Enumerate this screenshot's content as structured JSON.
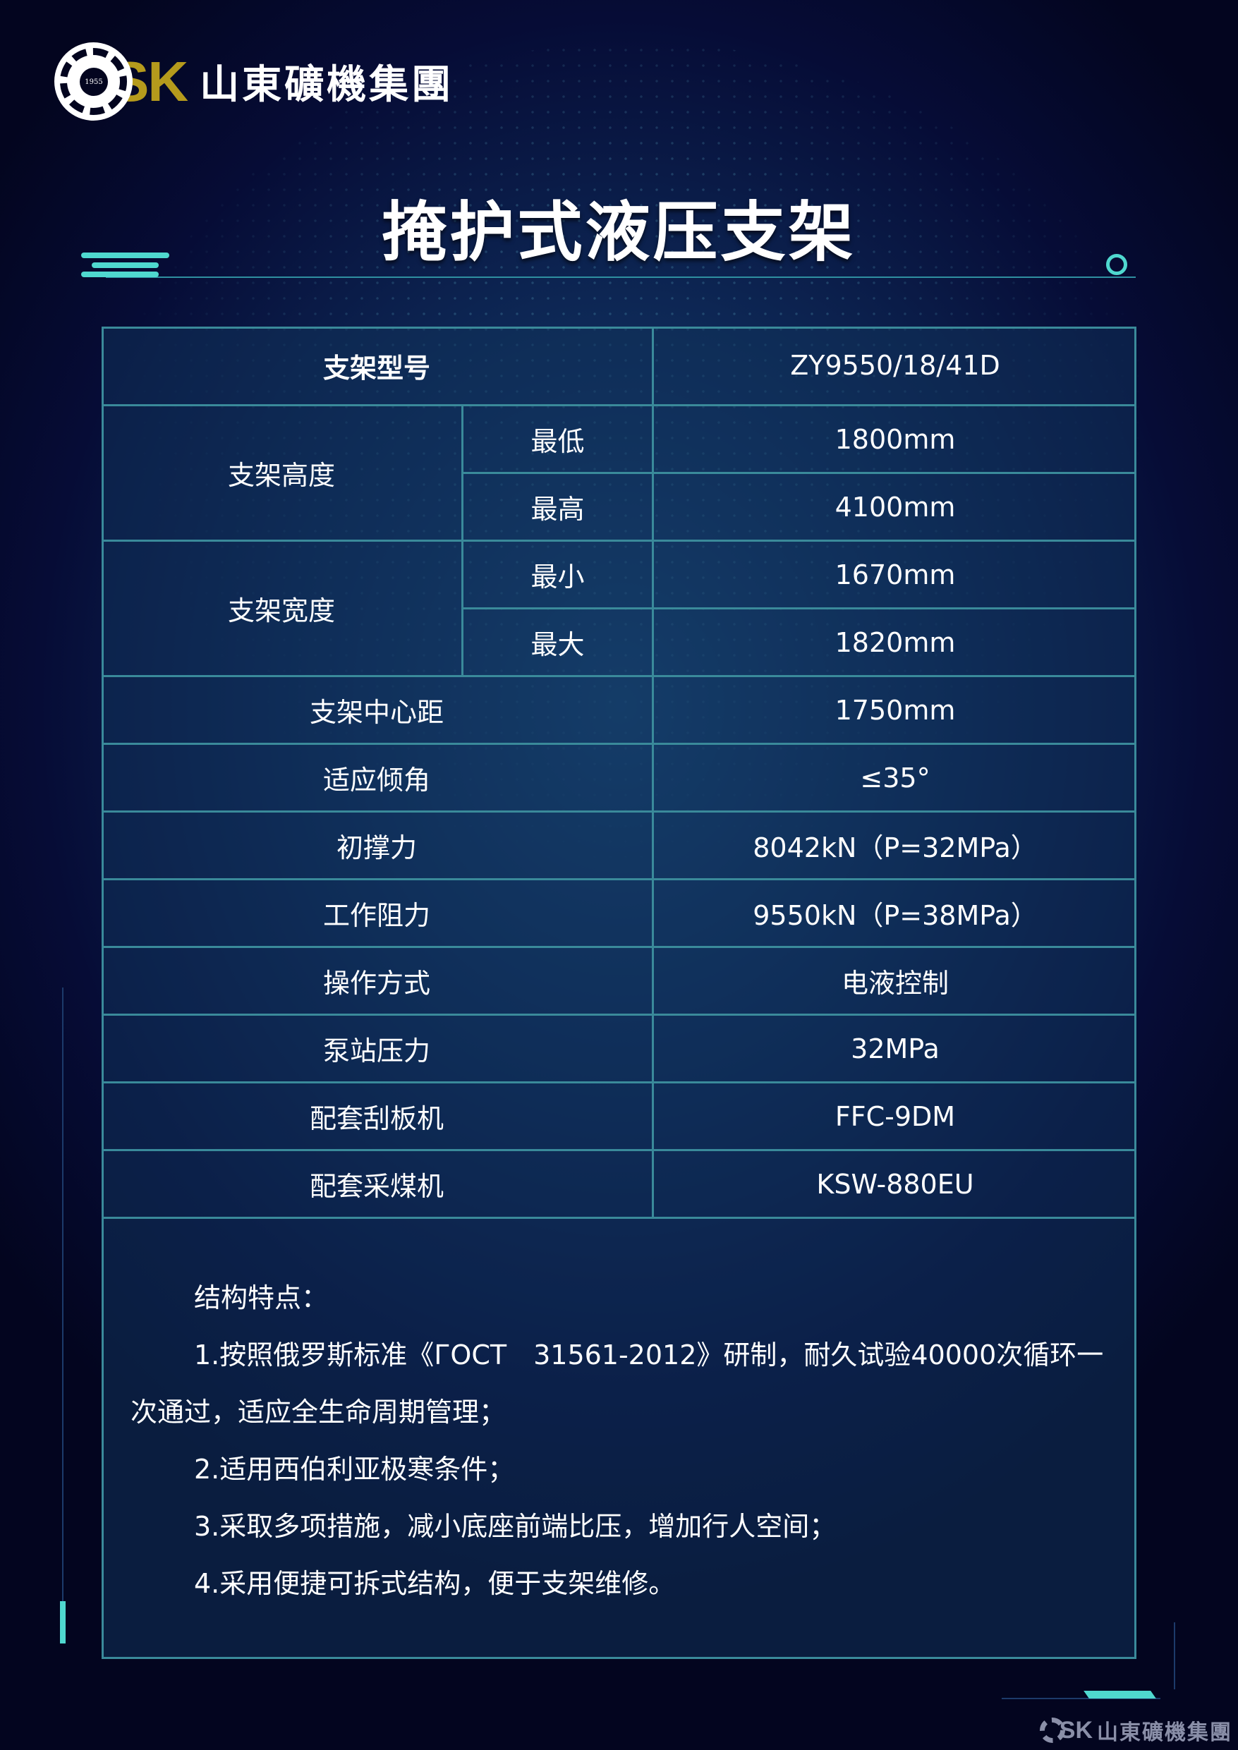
{
  "logo": {
    "year": "1955",
    "letters": "SK",
    "company": "山東礦機集團"
  },
  "title": "掩护式液压支架",
  "table": {
    "header": {
      "label": "支架型号",
      "value": "ZY9550/18/41D"
    },
    "height": {
      "label": "支架高度",
      "rows": [
        {
          "sub": "最低",
          "value": "1800mm"
        },
        {
          "sub": "最高",
          "value": "4100mm"
        }
      ]
    },
    "width": {
      "label": "支架宽度",
      "rows": [
        {
          "sub": "最小",
          "value": "1670mm"
        },
        {
          "sub": "最大",
          "value": "1820mm"
        }
      ]
    },
    "rows": [
      {
        "label": "支架中心距",
        "value": "1750mm"
      },
      {
        "label": "适应倾角",
        "value": "≤35°"
      },
      {
        "label": "初撑力",
        "value": "8042kN（P=32MPa）"
      },
      {
        "label": "工作阻力",
        "value": "9550kN（P=38MPa）"
      },
      {
        "label": "操作方式",
        "value": "电液控制"
      },
      {
        "label": "泵站压力",
        "value": "32MPa"
      },
      {
        "label": "配套刮板机",
        "value": "FFC-9DM"
      },
      {
        "label": "配套采煤机",
        "value": "KSW-880EU"
      }
    ]
  },
  "notes": {
    "heading": "结构特点：",
    "items": [
      "1.按照俄罗斯标准《ГОСТ　31561-2012》研制，耐久试验40000次循环一次通过，适应全生命周期管理；",
      "2.适用西伯利亚极寒条件；",
      "3.采取多项措施，减小底座前端比压，增加行人空间；",
      "4.采用便捷可拆式结构，便于支架维修。"
    ]
  },
  "colors": {
    "accent": "#4fd8cf",
    "gold": "#b59a1c",
    "border": "#3a8a9a",
    "background": "#03051f"
  }
}
